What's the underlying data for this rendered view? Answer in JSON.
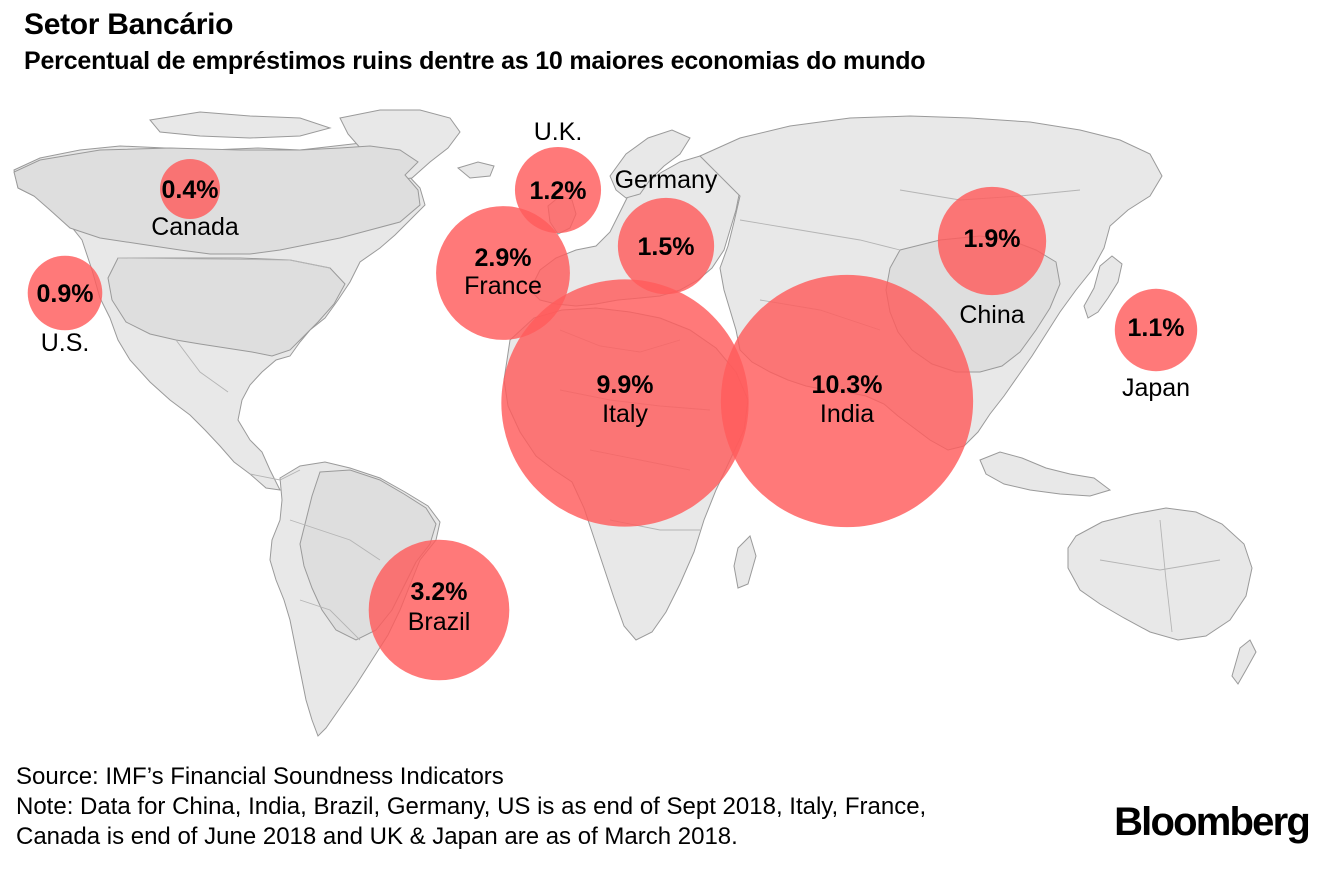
{
  "title": "Setor Bancário",
  "subtitle": "Percentual de empréstimos ruins dentre as 10 maiores economias do mundo",
  "source": "Source: IMF’s Financial Soundness Indicators",
  "note_line1": "Note: Data for China, India, Brazil, Germany, US is as end of Sept 2018, Italy, France,",
  "note_line2": "Canada is end of June 2018 and UK & Japan are as of March 2018.",
  "logo": "Bloomberg",
  "colors": {
    "bubble": "#ff5c5c",
    "land": "#e8e8e8",
    "land_outline": "#9a9a9a"
  },
  "map_data": {
    "unit": "%",
    "countries": [
      {
        "name": "U.S.",
        "value": 0.9,
        "label": "0.9%"
      },
      {
        "name": "Canada",
        "value": 0.4,
        "label": "0.4%"
      },
      {
        "name": "U.K.",
        "value": 1.2,
        "label": "1.2%"
      },
      {
        "name": "Germany",
        "value": 1.5,
        "label": "1.5%"
      },
      {
        "name": "France",
        "value": 2.9,
        "label": "2.9%"
      },
      {
        "name": "Italy",
        "value": 9.9,
        "label": "9.9%"
      },
      {
        "name": "India",
        "value": 10.3,
        "label": "10.3%"
      },
      {
        "name": "China",
        "value": 1.9,
        "label": "1.9%"
      },
      {
        "name": "Japan",
        "value": 1.1,
        "label": "1.1%"
      },
      {
        "name": "Brazil",
        "value": 3.2,
        "label": "3.2%"
      }
    ]
  }
}
